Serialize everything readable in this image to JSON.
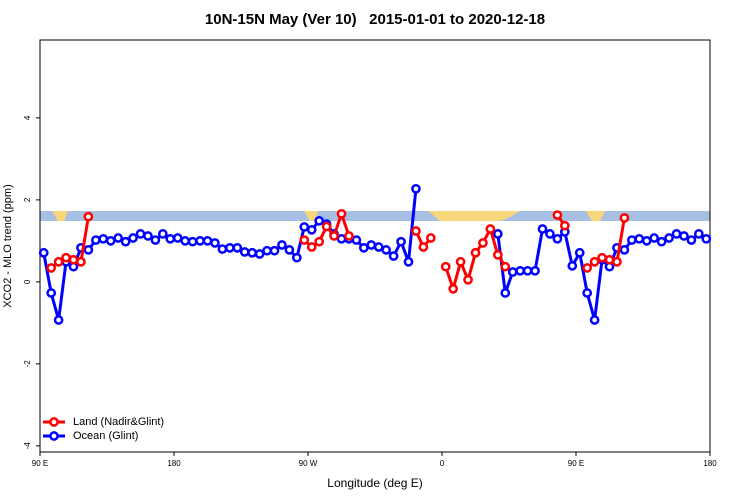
{
  "chart_data": {
    "type": "line",
    "title": "10N-15N May (Ver 10)   2015-01-01 to 2020-12-18",
    "x_label": "Longitude (deg E)",
    "y_label": "XCO2 - MLO trend (ppm)",
    "xlim": [
      90,
      540
    ],
    "xticks": [
      {
        "value": 90,
        "label": "90 E"
      },
      180,
      {
        "value": 270,
        "label": "90 W"
      },
      {
        "value": 360,
        "label": "0"
      },
      {
        "value": 450,
        "label": "90 E"
      },
      {
        "value": 540,
        "label": "180"
      }
    ],
    "ylim": [
      -4.15,
      5.9
    ],
    "yticks": [
      -4,
      -2,
      0,
      2,
      4
    ],
    "legend": "bottom-left",
    "x": [
      92.5,
      97.5,
      102.5,
      107.5,
      112.5,
      117.5,
      122.5,
      127.5,
      132.5,
      137.5,
      142.5,
      147.5,
      152.5,
      157.5,
      162.5,
      167.5,
      172.5,
      177.5,
      182.5,
      187.5,
      192.5,
      197.5,
      202.5,
      207.5,
      212.5,
      217.5,
      222.5,
      227.5,
      232.5,
      237.5,
      242.5,
      247.5,
      252.5,
      257.5,
      262.5,
      267.5,
      272.5,
      277.5,
      282.5,
      287.5,
      292.5,
      297.5,
      302.5,
      307.5,
      312.5,
      317.5,
      322.5,
      327.5,
      332.5,
      337.5,
      342.5,
      347.5,
      352.5,
      357.5,
      362.5,
      367.5,
      372.5,
      377.5,
      382.5,
      387.5,
      392.5,
      397.5,
      402.5,
      407.5,
      412.5,
      417.5,
      422.5,
      427.5,
      432.5,
      437.5,
      442.5,
      447.5,
      452.5,
      457.5,
      462.5,
      467.5,
      472.5,
      477.5,
      482.5,
      487.5,
      492.5,
      497.5,
      502.5,
      507.5,
      512.5,
      517.5,
      522.5,
      527.5,
      532.5,
      537.5
    ],
    "series": [
      {
        "name": "Ocean (Glint)",
        "color": "#0000ff",
        "values": [
          0.71,
          -0.27,
          -0.93,
          0.49,
          0.37,
          0.83,
          0.78,
          1.02,
          1.05,
          1.0,
          1.07,
          0.98,
          1.07,
          1.17,
          1.12,
          1.02,
          1.17,
          1.05,
          1.07,
          1.0,
          0.98,
          1.0,
          1.0,
          0.95,
          0.8,
          0.83,
          0.83,
          0.73,
          0.71,
          0.68,
          0.76,
          0.76,
          0.9,
          0.78,
          0.59,
          1.34,
          1.27,
          1.49,
          1.41,
          1.17,
          1.05,
          1.05,
          1.02,
          0.83,
          0.9,
          0.85,
          0.78,
          0.63,
          0.98,
          0.49,
          2.27,
          null,
          null,
          null,
          null,
          null,
          null,
          null,
          null,
          null,
          null,
          1.17,
          -0.27,
          0.24,
          0.27,
          0.27,
          0.27,
          1.29,
          1.17,
          1.05,
          1.22,
          0.39,
          0.71,
          -0.27,
          -0.93,
          0.54,
          0.37,
          0.83,
          0.78,
          1.02,
          1.05,
          1.0,
          1.07,
          0.98,
          1.07,
          1.17,
          1.12,
          1.02,
          1.17,
          1.05
        ]
      },
      {
        "name": "Land (Nadir&Glint)",
        "color": "#ff0000",
        "values": [
          null,
          0.34,
          0.49,
          0.59,
          0.54,
          0.49,
          1.59,
          null,
          null,
          null,
          null,
          null,
          null,
          null,
          null,
          null,
          null,
          null,
          null,
          null,
          null,
          null,
          null,
          null,
          null,
          null,
          null,
          null,
          null,
          null,
          null,
          null,
          null,
          null,
          null,
          1.02,
          0.85,
          0.98,
          1.35,
          1.12,
          1.66,
          1.12,
          null,
          null,
          null,
          null,
          null,
          null,
          null,
          null,
          1.24,
          0.85,
          1.07,
          null,
          0.37,
          -0.17,
          0.49,
          0.05,
          0.71,
          0.95,
          1.29,
          0.66,
          0.37,
          null,
          null,
          null,
          null,
          null,
          null,
          1.63,
          1.37,
          null,
          null,
          0.34,
          0.49,
          0.59,
          0.54,
          0.49,
          1.56,
          null,
          null,
          null,
          null,
          null,
          null,
          null,
          null,
          null,
          null,
          null
        ]
      }
    ]
  }
}
